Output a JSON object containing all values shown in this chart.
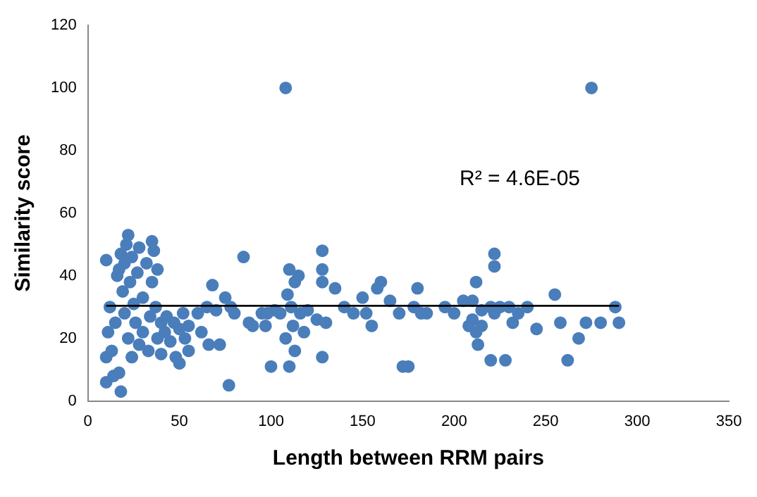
{
  "chart_data": {
    "type": "scatter",
    "xlabel": "Length between RRM pairs",
    "ylabel": "Similarity score",
    "xlim": [
      0,
      350
    ],
    "xticks": [
      0,
      50,
      100,
      150,
      200,
      250,
      300,
      350
    ],
    "ylim": [
      0,
      120
    ],
    "yticks": [
      0,
      20,
      40,
      60,
      80,
      100,
      120
    ],
    "grid": false,
    "legend": false,
    "marker": "circle",
    "annotations": [
      "R² = 4.6E-05"
    ],
    "series": [
      {
        "type": "scatter",
        "color": "#4a7ebb",
        "x": [
          10,
          10,
          11,
          10,
          12,
          13,
          14,
          15,
          16,
          17,
          17,
          18,
          18,
          19,
          20,
          20,
          21,
          22,
          22,
          23,
          24,
          24,
          25,
          26,
          27,
          28,
          28,
          30,
          30,
          32,
          33,
          34,
          35,
          35,
          36,
          37,
          38,
          38,
          40,
          40,
          42,
          43,
          45,
          47,
          48,
          50,
          50,
          52,
          53,
          55,
          55,
          60,
          62,
          65,
          66,
          68,
          70,
          72,
          75,
          77,
          78,
          80,
          85,
          88,
          90,
          95,
          97,
          98,
          100,
          102,
          105,
          108,
          108,
          109,
          110,
          110,
          111,
          112,
          113,
          113,
          115,
          116,
          118,
          120,
          125,
          128,
          128,
          128,
          128,
          130,
          135,
          140,
          145,
          150,
          152,
          155,
          158,
          160,
          165,
          170,
          172,
          175,
          178,
          180,
          182,
          185,
          195,
          200,
          205,
          208,
          210,
          210,
          212,
          212,
          213,
          215,
          215,
          222,
          222,
          220,
          220,
          222,
          225,
          228,
          230,
          232,
          235,
          240,
          245,
          255,
          258,
          262,
          268,
          272,
          275,
          280,
          288,
          290
        ],
        "values": [
          6,
          14,
          22,
          45,
          30,
          16,
          8,
          25,
          40,
          42,
          9,
          3,
          47,
          35,
          44,
          28,
          50,
          53,
          20,
          38,
          46,
          14,
          31,
          25,
          41,
          49,
          18,
          33,
          22,
          44,
          16,
          27,
          51,
          38,
          48,
          30,
          42,
          20,
          25,
          15,
          22,
          27,
          19,
          25,
          14,
          23,
          12,
          28,
          20,
          24,
          16,
          28,
          22,
          30,
          18,
          37,
          29,
          18,
          33,
          5,
          30,
          28,
          46,
          25,
          24,
          28,
          24,
          28,
          11,
          29,
          28,
          100,
          20,
          34,
          42,
          11,
          30,
          24,
          38,
          16,
          40,
          28,
          22,
          29,
          26,
          48,
          42,
          38,
          14,
          25,
          36,
          30,
          28,
          33,
          28,
          24,
          36,
          38,
          32,
          28,
          11,
          11,
          30,
          36,
          28,
          28,
          30,
          28,
          32,
          24,
          26,
          32,
          38,
          22,
          18,
          24,
          29,
          47,
          43,
          13,
          30,
          28,
          30,
          13,
          30,
          25,
          28,
          30,
          23,
          34,
          25,
          13,
          20,
          25,
          100,
          25,
          30,
          25
        ]
      },
      {
        "type": "line",
        "color": "#000000",
        "marker": "none",
        "x": [
          10,
          290
        ],
        "values": [
          30.4,
          30.4
        ]
      }
    ]
  }
}
